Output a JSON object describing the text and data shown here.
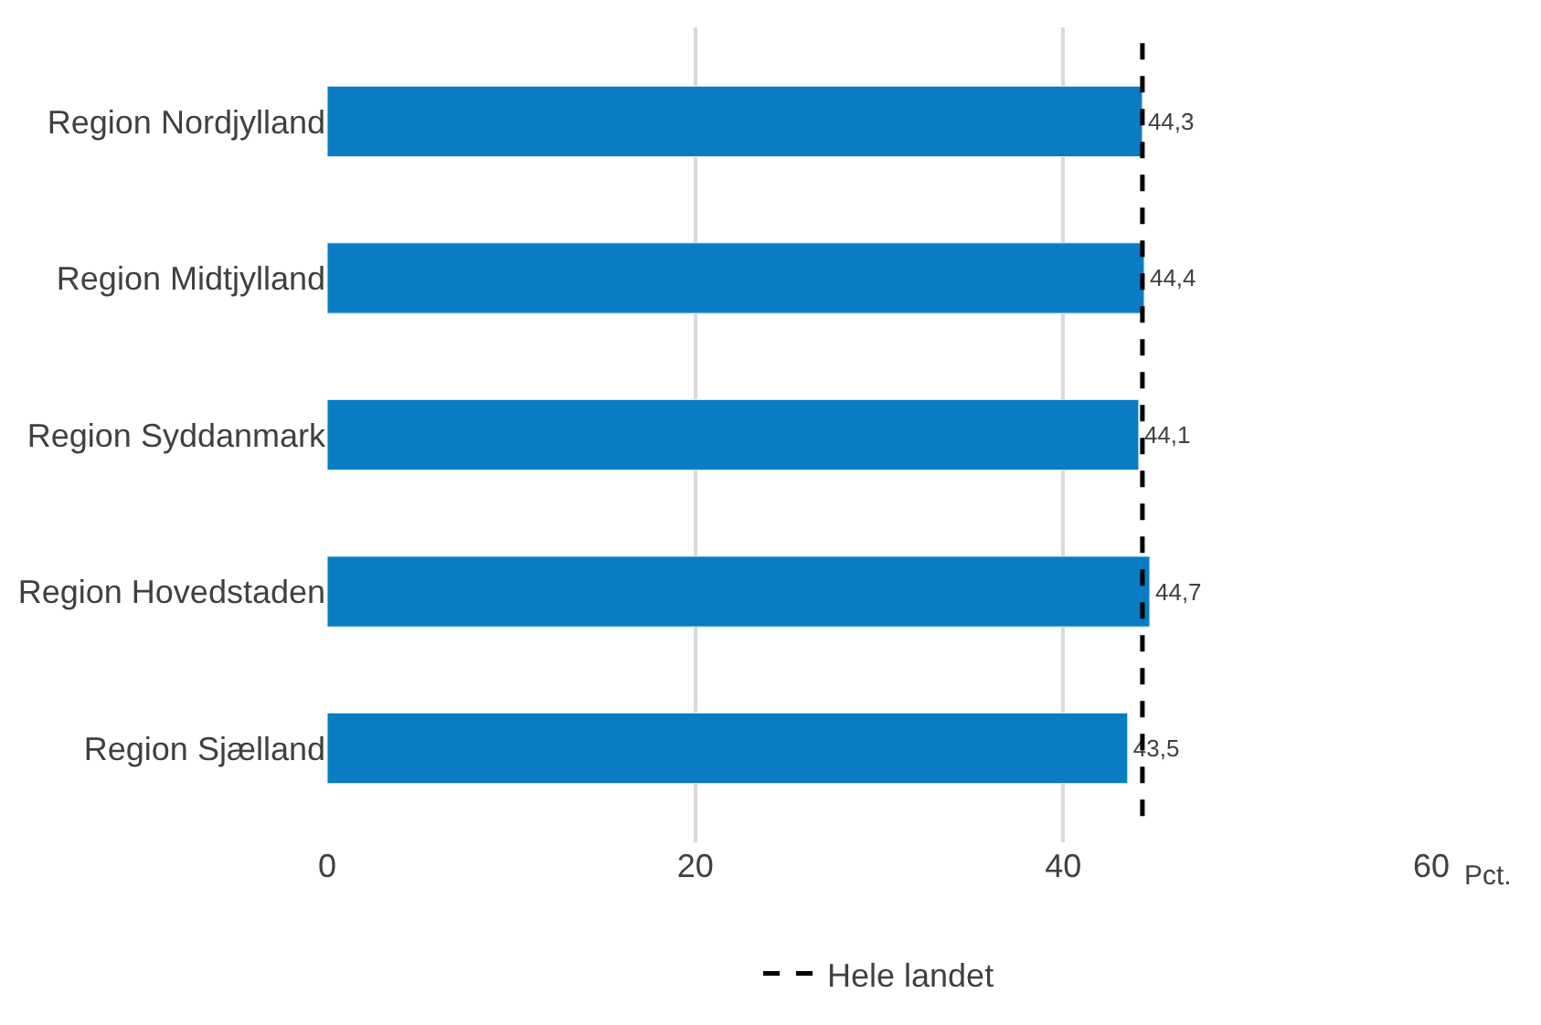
{
  "chart_data": {
    "type": "bar",
    "orientation": "horizontal",
    "categories": [
      "Region Nordjylland",
      "Region Midtjylland",
      "Region Syddanmark",
      "Region Hovedstaden",
      "Region Sjælland"
    ],
    "values": [
      44.3,
      44.4,
      44.1,
      44.7,
      43.5
    ],
    "value_labels": [
      "44,3",
      "44,4",
      "44,1",
      "44,7",
      "43,5"
    ],
    "color": "#0a7cc4",
    "xlabel": "Pct.",
    "xlim": [
      0,
      60
    ],
    "xticks": [
      0,
      20,
      40,
      60
    ],
    "grid": "x",
    "legend": "bottom",
    "ref_lines": [
      {
        "axis": "x",
        "value": 44.3,
        "label": "Hele landet",
        "color": "#000000",
        "line_style": "dashed"
      }
    ]
  }
}
